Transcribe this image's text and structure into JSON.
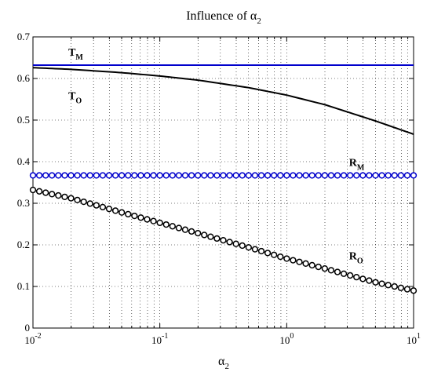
{
  "chart_data": {
    "type": "line",
    "title": {
      "text": "Influence of α",
      "sub": "2"
    },
    "xlabel": {
      "text": "α",
      "sub": "2"
    },
    "ylabel": "",
    "xscale": "log",
    "xlim": [
      0.01,
      10
    ],
    "ylim": [
      0,
      0.7
    ],
    "grid": true,
    "x_ticks": [
      {
        "value": 0.01,
        "base": "10",
        "exp": "-2"
      },
      {
        "value": 0.1,
        "base": "10",
        "exp": "-1"
      },
      {
        "value": 1,
        "base": "10",
        "exp": "0"
      },
      {
        "value": 10,
        "base": "10",
        "exp": "1"
      }
    ],
    "y_ticks": [
      {
        "value": 0,
        "label": "0"
      },
      {
        "value": 0.1,
        "label": "0.1"
      },
      {
        "value": 0.2,
        "label": "0.2"
      },
      {
        "value": 0.3,
        "label": "0.3"
      },
      {
        "value": 0.4,
        "label": "0.4"
      },
      {
        "value": 0.5,
        "label": "0.5"
      },
      {
        "value": 0.6,
        "label": "0.6"
      },
      {
        "value": 0.7,
        "label": "0.7"
      }
    ],
    "series": [
      {
        "name": "T_M",
        "color": "#0000cc",
        "marker": "none",
        "x": [
          0.01,
          10
        ],
        "y": [
          0.632,
          0.632
        ]
      },
      {
        "name": "T_O",
        "color": "#000000",
        "marker": "none",
        "x": [
          0.01,
          0.02,
          0.05,
          0.1,
          0.2,
          0.5,
          1,
          2,
          5,
          10
        ],
        "y": [
          0.626,
          0.622,
          0.614,
          0.606,
          0.596,
          0.578,
          0.56,
          0.537,
          0.498,
          0.466
        ]
      },
      {
        "name": "R_M",
        "color": "#0000cc",
        "marker": "circle",
        "x": [
          0.01,
          10
        ],
        "y": [
          0.367,
          0.367
        ]
      },
      {
        "name": "R_O",
        "color": "#000000",
        "marker": "circle",
        "x": [
          0.01,
          0.02,
          0.05,
          0.1,
          0.2,
          0.5,
          1,
          2,
          5,
          10
        ],
        "y": [
          0.332,
          0.312,
          0.278,
          0.253,
          0.228,
          0.194,
          0.167,
          0.143,
          0.11,
          0.09
        ]
      }
    ],
    "annotations": [
      {
        "series": "T_M",
        "base": "T",
        "sub": "M",
        "x": 0.019,
        "y": 0.655
      },
      {
        "series": "T_O",
        "base": "T",
        "sub": "O",
        "x": 0.019,
        "y": 0.55
      },
      {
        "series": "R_M",
        "base": "R",
        "sub": "M",
        "x": 3.1,
        "y": 0.39
      },
      {
        "series": "R_O",
        "base": "R",
        "sub": "O",
        "x": 3.1,
        "y": 0.165
      }
    ]
  }
}
